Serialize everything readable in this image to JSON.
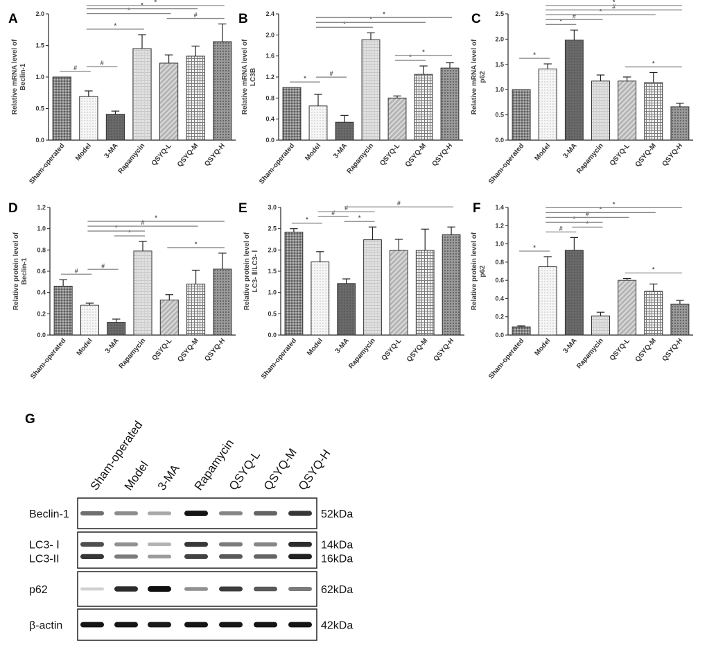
{
  "categories": [
    "Sham-operated",
    "Model",
    "3-MA",
    "Rapamycin",
    "QSYQ-L",
    "QSYQ-M",
    "QSYQ-H"
  ],
  "chart_data": [
    {
      "type": "bar",
      "panel": "A",
      "ylabel": [
        "Relative mRNA level of",
        "Beclin-1"
      ],
      "ylim": [
        0,
        2.0
      ],
      "ticks": [
        "0.0",
        "0.5",
        "1.0",
        "1.5",
        "2.0"
      ],
      "values": [
        1.0,
        0.69,
        0.41,
        1.45,
        1.22,
        1.33,
        1.56
      ],
      "errors": [
        0.0,
        0.09,
        0.05,
        0.22,
        0.13,
        0.16,
        0.28
      ],
      "sig": [
        {
          "from": 0,
          "to": 1,
          "mark": "#"
        },
        {
          "from": 1,
          "to": 2,
          "mark": "#"
        },
        {
          "from": 1,
          "to": 3,
          "mark": "*"
        },
        {
          "from": 1,
          "to": 4,
          "mark": "*"
        },
        {
          "from": 4,
          "to": 6,
          "mark": "#"
        },
        {
          "from": 1,
          "to": 5,
          "mark": "*"
        },
        {
          "from": 1,
          "to": 6,
          "mark": "*"
        }
      ]
    },
    {
      "type": "bar",
      "panel": "B",
      "ylabel": [
        "Relative mRNA level of",
        "LC3B"
      ],
      "ylim": [
        0,
        2.4
      ],
      "ticks": [
        "0.0",
        "0.4",
        "0.8",
        "1.2",
        "1.6",
        "2.0",
        "2.4"
      ],
      "values": [
        1.0,
        0.65,
        0.34,
        1.91,
        0.8,
        1.25,
        1.37
      ],
      "errors": [
        0.0,
        0.22,
        0.13,
        0.13,
        0.04,
        0.16,
        0.1
      ],
      "sig": [
        {
          "from": 0,
          "to": 1,
          "mark": "*"
        },
        {
          "from": 1,
          "to": 2,
          "mark": "#"
        },
        {
          "from": 4,
          "to": 5,
          "mark": "*"
        },
        {
          "from": 4,
          "to": 6,
          "mark": "*"
        },
        {
          "from": 1,
          "to": 3,
          "mark": "*"
        },
        {
          "from": 1,
          "to": 5,
          "mark": "*"
        },
        {
          "from": 1,
          "to": 6,
          "mark": "*"
        }
      ]
    },
    {
      "type": "bar",
      "panel": "C",
      "ylabel": [
        "Relative mRNA level of",
        "p62"
      ],
      "ylim": [
        0,
        2.5
      ],
      "ticks": [
        "0.0",
        "0.5",
        "1.0",
        "1.5",
        "2.0",
        "2.5"
      ],
      "values": [
        1.0,
        1.41,
        1.98,
        1.17,
        1.17,
        1.14,
        0.66
      ],
      "errors": [
        0.0,
        0.1,
        0.2,
        0.12,
        0.08,
        0.2,
        0.07
      ],
      "sig": [
        {
          "from": 0,
          "to": 1,
          "mark": "*"
        },
        {
          "from": 4,
          "to": 6,
          "mark": "*"
        },
        {
          "from": 1,
          "to": 2,
          "mark": "*"
        },
        {
          "from": 1,
          "to": 3,
          "mark": "#"
        },
        {
          "from": 1,
          "to": 5,
          "mark": "*"
        },
        {
          "from": 1,
          "to": 6,
          "mark": "#"
        },
        {
          "from": 1,
          "to": 6,
          "mark": "*"
        }
      ]
    },
    {
      "type": "bar",
      "panel": "D",
      "ylabel": [
        "Relative protein level of",
        "Beclin-1"
      ],
      "ylim": [
        0,
        1.2
      ],
      "ticks": [
        "0.0",
        "0.2",
        "0.4",
        "0.6",
        "0.8",
        "1.0",
        "1.2"
      ],
      "values": [
        0.46,
        0.28,
        0.12,
        0.79,
        0.33,
        0.48,
        0.62
      ],
      "errors": [
        0.06,
        0.02,
        0.03,
        0.09,
        0.05,
        0.13,
        0.15
      ],
      "sig": [
        {
          "from": 0,
          "to": 1,
          "mark": "#"
        },
        {
          "from": 1,
          "to": 2,
          "mark": "#"
        },
        {
          "from": 2,
          "to": 3,
          "mark": "*"
        },
        {
          "from": 4,
          "to": 6,
          "mark": "*"
        },
        {
          "from": 1,
          "to": 3,
          "mark": "*"
        },
        {
          "from": 1,
          "to": 5,
          "mark": "#"
        },
        {
          "from": 1,
          "to": 6,
          "mark": "*"
        }
      ]
    },
    {
      "type": "bar",
      "panel": "E",
      "ylabel": [
        "Relative protein level of",
        "LC3- Ⅱ/LC3- Ⅰ"
      ],
      "ylim": [
        0,
        3.0
      ],
      "ticks": [
        "0.0",
        "0.5",
        "1.0",
        "1.5",
        "2.0",
        "2.5",
        "3.0"
      ],
      "values": [
        2.42,
        1.72,
        1.21,
        2.24,
        1.99,
        1.99,
        2.36
      ],
      "errors": [
        0.08,
        0.24,
        0.11,
        0.3,
        0.26,
        0.5,
        0.18
      ],
      "sig": [
        {
          "from": 0,
          "to": 1,
          "mark": "*"
        },
        {
          "from": 2,
          "to": 3,
          "mark": "*"
        },
        {
          "from": 1,
          "to": 2,
          "mark": "#"
        },
        {
          "from": 1,
          "to": 3,
          "mark": "#"
        },
        {
          "from": 2,
          "to": 6,
          "mark": "#"
        }
      ]
    },
    {
      "type": "bar",
      "panel": "F",
      "ylabel": [
        "Relative protein level of",
        "p62"
      ],
      "ylim": [
        0,
        1.4
      ],
      "ticks": [
        "0.0",
        "0.2",
        "0.4",
        "0.6",
        "0.8",
        "1.0",
        "1.2",
        "1.4"
      ],
      "values": [
        0.09,
        0.75,
        0.93,
        0.21,
        0.6,
        0.48,
        0.34
      ],
      "errors": [
        0.01,
        0.11,
        0.14,
        0.04,
        0.02,
        0.08,
        0.04
      ],
      "sig": [
        {
          "from": 0,
          "to": 1,
          "mark": "*"
        },
        {
          "from": 4,
          "to": 6,
          "mark": "*"
        },
        {
          "from": 1,
          "to": 2,
          "mark": "#"
        },
        {
          "from": 2,
          "to": 3,
          "mark": "*"
        },
        {
          "from": 1,
          "to": 3,
          "mark": "*"
        },
        {
          "from": 1,
          "to": 4,
          "mark": "#"
        },
        {
          "from": 1,
          "to": 5,
          "mark": "*"
        },
        {
          "from": 1,
          "to": 6,
          "mark": "*"
        }
      ]
    }
  ],
  "western_blot": {
    "panel": "G",
    "rows": [
      {
        "label": "Beclin-1",
        "size": "52kDa",
        "bands": [
          [
            0.55,
            0.42,
            0.3,
            0.95,
            0.45,
            0.6,
            0.8
          ]
        ]
      },
      {
        "label": "LC3- Ⅰ",
        "size": "14kDa",
        "label2": "LC3-II",
        "size2": "16kDa",
        "bands": [
          [
            0.7,
            0.4,
            0.25,
            0.8,
            0.5,
            0.45,
            0.85
          ],
          [
            0.8,
            0.5,
            0.35,
            0.75,
            0.65,
            0.6,
            0.9
          ]
        ]
      },
      {
        "label": "p62",
        "size": "62kDa",
        "bands": [
          [
            0.12,
            0.85,
            0.98,
            0.4,
            0.78,
            0.65,
            0.5
          ]
        ]
      },
      {
        "label": "β-actin",
        "size": "42kDa",
        "bands": [
          [
            0.95,
            0.95,
            0.93,
            0.95,
            0.94,
            0.95,
            0.95
          ]
        ]
      }
    ]
  }
}
